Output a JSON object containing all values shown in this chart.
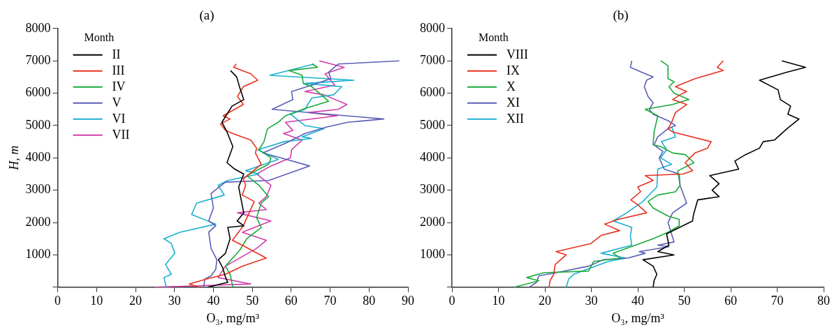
{
  "chart_data": [
    {
      "type": "line",
      "title": "(a)",
      "xlabel": "O₃, mg/m³",
      "ylabel": "H, m",
      "legend_title": "Month",
      "legend": "top left",
      "marker": "none",
      "xlim": [
        0,
        90
      ],
      "ylim": [
        0,
        8000
      ],
      "xticks": [
        0,
        10,
        20,
        30,
        40,
        50,
        60,
        70,
        80,
        90
      ],
      "yticks": [
        {
          "value": 0,
          "label": null
        },
        1000,
        2000,
        3000,
        4000,
        5000,
        6000,
        7000,
        8000
      ],
      "series": [
        {
          "name": "II",
          "color": "#000000",
          "x": [
            44.4,
            46,
            46.7,
            47.8,
            44.8,
            42.2,
            43.5,
            45,
            43.5,
            45.5,
            47.8,
            46.5,
            47.8,
            46.1,
            47.8,
            43.7,
            44.3,
            43.1,
            41.3,
            42.4,
            43,
            43.7,
            38.5
          ],
          "values": [
            6700,
            6500,
            6200,
            5800,
            5600,
            5100,
            4800,
            4350,
            3850,
            3650,
            3500,
            3100,
            2300,
            2050,
            1900,
            1850,
            1500,
            1050,
            850,
            600,
            350,
            150,
            0
          ]
        },
        {
          "name": "III",
          "color": "#e8311f",
          "x": [
            45.9,
            45.2,
            49.6,
            51.4,
            47.7,
            46.2,
            47.7,
            42.5,
            44.3,
            41.8,
            43.1,
            45,
            49.6,
            51.1,
            50.8,
            52.3,
            47.7,
            48.3,
            47.4,
            50.5,
            47.7,
            44.9,
            47.4,
            53.6,
            49.9,
            47.4,
            43.1,
            38.1,
            33.8,
            36.3
          ],
          "values": [
            6900,
            6800,
            6600,
            6400,
            6200,
            5900,
            5650,
            5300,
            5200,
            5050,
            4850,
            4750,
            4550,
            4300,
            4150,
            3800,
            3350,
            3150,
            2850,
            2650,
            1900,
            1450,
            1300,
            900,
            750,
            650,
            400,
            250,
            100,
            0
          ]
        },
        {
          "name": "IV",
          "color": "#1aaa3a",
          "x": [
            65.3,
            66.8,
            59.4,
            62.8,
            63.1,
            65.3,
            69.6,
            64.1,
            58.5,
            56.7,
            53.9,
            53,
            51.7,
            54.8,
            54.2,
            48.6,
            51.7,
            54.2,
            52.3,
            51.1,
            52.3,
            48.6,
            46.8,
            43.1,
            44.3,
            45
          ],
          "values": [
            6900,
            6800,
            6700,
            6550,
            6300,
            6200,
            5750,
            5550,
            5300,
            5100,
            4900,
            4500,
            4250,
            4000,
            3800,
            3450,
            3150,
            2800,
            2600,
            2150,
            1850,
            1500,
            1150,
            650,
            400,
            0
          ]
        },
        {
          "name": "V",
          "color": "#5a5fb8",
          "x": [
            87.8,
            72.1,
            69.6,
            70.2,
            65.3,
            60.1,
            60.4,
            55.1,
            83.8,
            74.6,
            69,
            63.5,
            58.5,
            52.7,
            57.3,
            64.7,
            54.2,
            43.1,
            39.4,
            40,
            38.8,
            40.6,
            38.8,
            39.4,
            40.9,
            40.6,
            39.4,
            37.8,
            37.5
          ],
          "values": [
            7000,
            6900,
            6650,
            6450,
            6250,
            6050,
            5800,
            5500,
            5200,
            5100,
            4950,
            4750,
            4450,
            4150,
            4000,
            3750,
            3300,
            3250,
            2900,
            2450,
            2050,
            1900,
            1700,
            1200,
            850,
            550,
            350,
            250,
            0
          ]
        },
        {
          "name": "VI",
          "color": "#1ab0d0",
          "x": [
            65.9,
            54.5,
            76.1,
            63.5,
            73,
            70.9,
            65.3,
            63.5,
            59.8,
            63.5,
            68.4,
            62.8,
            65.3,
            58.2,
            51.4,
            56.7,
            48.3,
            51.7,
            43.7,
            41.2,
            42.8,
            35.7,
            34.4,
            40.6,
            31.4,
            27.3,
            29.2,
            30.1,
            27.7,
            29.2,
            27.3,
            27.9
          ],
          "values": [
            6900,
            6550,
            6400,
            6300,
            6200,
            5950,
            5850,
            5500,
            5350,
            5000,
            4900,
            4650,
            4600,
            4500,
            4250,
            3950,
            3600,
            3500,
            3300,
            3150,
            2850,
            2600,
            2250,
            1950,
            1700,
            1500,
            1350,
            1050,
            700,
            400,
            300,
            0
          ]
        },
        {
          "name": "VII",
          "color": "#d23ca8",
          "x": [
            67.2,
            73.6,
            68.7,
            71.2,
            63.5,
            68.4,
            74.3,
            72.1,
            64.4,
            71.8,
            58.5,
            60.4,
            58,
            62.8,
            60.1,
            59.8,
            54.8,
            51.1,
            54.8,
            53.6,
            51.7,
            53.6,
            46.2,
            54.8,
            47.4,
            53.6,
            51.1,
            43.1,
            41.2,
            49.6,
            24.9
          ],
          "values": [
            7000,
            6800,
            6600,
            6250,
            6050,
            5950,
            5650,
            5500,
            5400,
            5300,
            5100,
            4850,
            4750,
            4550,
            4250,
            4000,
            3750,
            3500,
            3150,
            2800,
            2600,
            2400,
            2300,
            2050,
            1700,
            1450,
            1200,
            650,
            300,
            100,
            0
          ]
        }
      ]
    },
    {
      "type": "line",
      "title": "(b)",
      "xlabel": "O₃, mg/m³",
      "legend_title": "Month",
      "legend": "top left",
      "marker": "none",
      "xlim": [
        0,
        80
      ],
      "ylim": [
        0,
        8000
      ],
      "xticks": [
        0,
        10,
        20,
        30,
        40,
        50,
        60,
        70,
        80
      ],
      "yticks": [
        {
          "value": 0,
          "label": null
        },
        1000,
        2000,
        3000,
        4000,
        5000,
        6000,
        7000,
        8000
      ],
      "series": [
        {
          "name": "VIII",
          "color": "#000000",
          "x": [
            71,
            76.1,
            72.1,
            66.2,
            70.2,
            70.7,
            72.9,
            72.3,
            74.7,
            72.1,
            69.4,
            67,
            66.2,
            63.2,
            60.9,
            61.7,
            57,
            55.5,
            57.5,
            56,
            57.5,
            52.9,
            52,
            51.8,
            46.2,
            46.7,
            44.3,
            47.8,
            41.1,
            43.3,
            44.1,
            43.5,
            43.3
          ],
          "values": [
            7000,
            6800,
            6650,
            6400,
            6100,
            5800,
            5600,
            5350,
            5200,
            4900,
            4550,
            4500,
            4300,
            4100,
            3900,
            3650,
            3500,
            3450,
            3200,
            3000,
            2800,
            2700,
            2250,
            2050,
            1650,
            1300,
            1100,
            1000,
            850,
            650,
            400,
            200,
            0
          ]
        },
        {
          "name": "IX",
          "color": "#e8311f",
          "x": [
            58.4,
            57.1,
            58.4,
            52.3,
            48.1,
            50.5,
            49.1,
            47.5,
            50.5,
            48.1,
            47.3,
            46.5,
            47.5,
            55.8,
            55,
            52.3,
            50.2,
            51.8,
            49.7,
            41.6,
            43.3,
            40,
            40.6,
            38.5,
            40,
            41.9,
            35.8,
            32.9,
            36.1,
            32.1,
            29.9,
            22.4,
            24.6,
            22.2,
            21.9,
            21.1,
            20.9
          ],
          "values": [
            7000,
            6800,
            6700,
            6450,
            6200,
            6050,
            5950,
            5800,
            5650,
            5400,
            5100,
            4900,
            4800,
            4500,
            4300,
            4150,
            3850,
            3600,
            3500,
            3450,
            3300,
            3100,
            2950,
            2700,
            2550,
            2300,
            2100,
            1950,
            1750,
            1600,
            1350,
            1100,
            1000,
            700,
            400,
            200,
            0
          ]
        },
        {
          "name": "X",
          "color": "#1aaa3a",
          "x": [
            44.9,
            46.5,
            46.5,
            47.8,
            46.7,
            47.8,
            51,
            47.5,
            41.6,
            44.3,
            43.5,
            43.3,
            44.9,
            47.5,
            50.2,
            52.1,
            48.6,
            49.1,
            48.1,
            44.3,
            42.2,
            43.3,
            46.5,
            48.9,
            48.9,
            46.5,
            43.3,
            34.7,
            36.3,
            30.5,
            29.4,
            19.8,
            16.1,
            18.7,
            13.4
          ],
          "values": [
            7000,
            6850,
            6450,
            6350,
            6200,
            6000,
            5800,
            5650,
            5500,
            5300,
            4800,
            4400,
            4350,
            4150,
            4100,
            3850,
            3600,
            3150,
            2950,
            2850,
            2650,
            2450,
            2200,
            2100,
            1900,
            1700,
            1500,
            1050,
            900,
            800,
            500,
            450,
            300,
            200,
            0
          ]
        },
        {
          "name": "XI",
          "color": "#5a5fb8",
          "x": [
            38.7,
            38.4,
            41.6,
            43.3,
            41.9,
            41.4,
            42.2,
            43.3,
            42.5,
            43.3,
            46.5,
            48.1,
            46.5,
            44.3,
            43.5,
            45.4,
            44.6,
            45.7,
            48.9,
            49.1,
            50.5,
            47.5,
            46.5,
            47.8,
            44.3,
            46.7,
            40.3,
            41.6,
            37.9,
            32.6,
            29.4,
            22.4,
            18.7,
            18.2,
            16.6
          ],
          "values": [
            7000,
            6800,
            6600,
            6500,
            6400,
            6200,
            5900,
            5700,
            5500,
            5350,
            5150,
            5000,
            4900,
            4650,
            4400,
            4200,
            4000,
            3650,
            3500,
            3150,
            2600,
            2300,
            2000,
            1400,
            1300,
            1250,
            1100,
            1050,
            900,
            850,
            650,
            450,
            350,
            150,
            0
          ]
        },
        {
          "name": "XII",
          "color": "#1ab0d0",
          "x": [
            47.3,
            48.1,
            45.1,
            46.2,
            44.9,
            47.3,
            44.3,
            44.1,
            41.1,
            37.6,
            34.7,
            38.7,
            38.4,
            38.7,
            32.1,
            37.4,
            33.7,
            29.9,
            26.2,
            25.1,
            24.6
          ],
          "values": [
            4950,
            4650,
            4500,
            4250,
            4000,
            3800,
            3650,
            3100,
            2650,
            2300,
            2050,
            1850,
            1600,
            1300,
            1050,
            900,
            800,
            600,
            400,
            250,
            0
          ]
        }
      ]
    }
  ]
}
